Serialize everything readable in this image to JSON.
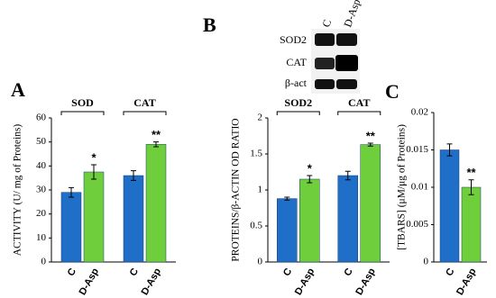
{
  "chart_data": [
    {
      "type": "bar",
      "panel_label": "A",
      "ylabel": "ACTIVITY (U/ mg of Proteins)",
      "categories": [
        "SOD",
        "CAT"
      ],
      "series": [
        {
          "name": "C",
          "color": "#1f6fc8",
          "values": [
            29,
            36
          ],
          "errors": [
            2,
            2
          ]
        },
        {
          "name": "D-Asp",
          "color": "#6fce3c",
          "values": [
            37.5,
            49
          ],
          "errors": [
            3,
            1
          ],
          "annotations": [
            "*",
            "**"
          ]
        }
      ],
      "ylim": [
        0,
        60
      ],
      "yticks": [
        0,
        10,
        20,
        30,
        40,
        50,
        60
      ]
    },
    {
      "type": "bar",
      "panel_label": "B",
      "ylabel": "PROTEINS/β-ACTIN OD RATIO",
      "categories": [
        "SOD2",
        "CAT"
      ],
      "series": [
        {
          "name": "C",
          "color": "#1f6fc8",
          "values": [
            0.88,
            1.2
          ],
          "errors": [
            0.02,
            0.06
          ]
        },
        {
          "name": "D-Asp",
          "color": "#6fce3c",
          "values": [
            1.15,
            1.63
          ],
          "errors": [
            0.05,
            0.02
          ],
          "annotations": [
            "*",
            "**"
          ]
        }
      ],
      "ylim": [
        0,
        2
      ],
      "yticks": [
        0,
        0.5,
        1,
        1.5,
        2
      ]
    },
    {
      "type": "bar",
      "panel_label": "C",
      "ylabel": "[TBARS] (μM/μg of Proteins)",
      "categories": [
        null
      ],
      "series": [
        {
          "name": "C",
          "color": "#1f6fc8",
          "values": [
            0.015
          ],
          "errors": [
            0.0008
          ]
        },
        {
          "name": "D-Asp",
          "color": "#6fce3c",
          "values": [
            0.01
          ],
          "errors": [
            0.001
          ],
          "annotations": [
            "**"
          ]
        }
      ],
      "ylim": [
        0,
        0.02
      ],
      "yticks": [
        0,
        0.005,
        0.01,
        0.015,
        0.02
      ]
    }
  ],
  "blot": {
    "columns": [
      "C",
      "D-Asp"
    ],
    "rows": [
      "SOD2",
      "CAT",
      "β-act"
    ]
  }
}
